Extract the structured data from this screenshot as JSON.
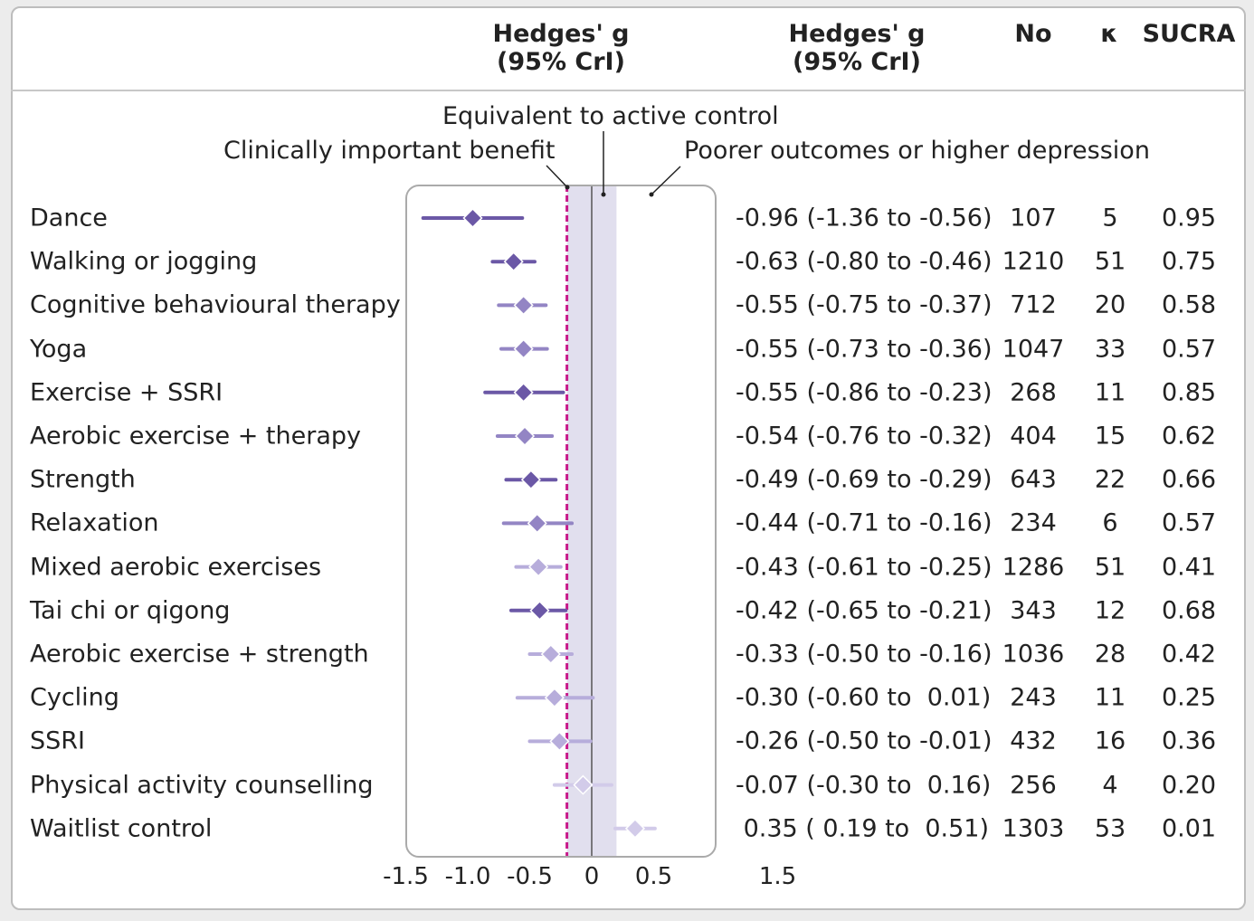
{
  "headers": {
    "effect_plot": [
      "Hedges' g",
      "(95% CrI)"
    ],
    "effect_text": [
      "Hedges' g",
      "(95% CrI)"
    ],
    "n": "No",
    "k": "κ",
    "sucra": "SUCRA"
  },
  "annotations": {
    "equivalent": "Equivalent to active control",
    "benefit": "Clinically important benefit",
    "poorer": "Poorer outcomes or higher depression"
  },
  "rows": [
    {
      "label": "Dance",
      "ci_text": "-0.96 (-1.36 to -0.56)",
      "n": "107",
      "k": "5",
      "sucra": "0.95"
    },
    {
      "label": "Walking or jogging",
      "ci_text": "-0.63 (-0.80 to -0.46)",
      "n": "1210",
      "k": "51",
      "sucra": "0.75"
    },
    {
      "label": "Cognitive behavioural therapy",
      "ci_text": "-0.55 (-0.75 to -0.37)",
      "n": "712",
      "k": "20",
      "sucra": "0.58"
    },
    {
      "label": "Yoga",
      "ci_text": "-0.55 (-0.73 to -0.36)",
      "n": "1047",
      "k": "33",
      "sucra": "0.57"
    },
    {
      "label": "Exercise + SSRI",
      "ci_text": "-0.55 (-0.86 to -0.23)",
      "n": "268",
      "k": "11",
      "sucra": "0.85"
    },
    {
      "label": "Aerobic exercise + therapy",
      "ci_text": "-0.54 (-0.76 to -0.32)",
      "n": "404",
      "k": "15",
      "sucra": "0.62"
    },
    {
      "label": "Strength",
      "ci_text": "-0.49 (-0.69 to -0.29)",
      "n": "643",
      "k": "22",
      "sucra": "0.66"
    },
    {
      "label": "Relaxation",
      "ci_text": "-0.44 (-0.71 to -0.16)",
      "n": "234",
      "k": "6",
      "sucra": "0.57"
    },
    {
      "label": "Mixed aerobic exercises",
      "ci_text": "-0.43 (-0.61 to -0.25)",
      "n": "1286",
      "k": "51",
      "sucra": "0.41"
    },
    {
      "label": "Tai chi or qigong",
      "ci_text": "-0.42 (-0.65 to -0.21)",
      "n": "343",
      "k": "12",
      "sucra": "0.68"
    },
    {
      "label": "Aerobic exercise + strength",
      "ci_text": "-0.33 (-0.50 to -0.16)",
      "n": "1036",
      "k": "28",
      "sucra": "0.42"
    },
    {
      "label": "Cycling",
      "ci_text": "-0.30 (-0.60 to  0.01)",
      "n": "243",
      "k": "11",
      "sucra": "0.25"
    },
    {
      "label": "SSRI",
      "ci_text": "-0.26 (-0.50 to -0.01)",
      "n": "432",
      "k": "16",
      "sucra": "0.36"
    },
    {
      "label": "Physical activity counselling",
      "ci_text": "-0.07 (-0.30 to  0.16)",
      "n": "256",
      "k": "4",
      "sucra": "0.20"
    },
    {
      "label": "Waitlist control",
      "ci_text": " 0.35 ( 0.19 to  0.51)",
      "n": "1303",
      "k": "53",
      "sucra": "0.01"
    }
  ],
  "chart_data": {
    "type": "forest",
    "xlim": [
      -1.5,
      1.5
    ],
    "x_ticks": [
      "-1.5",
      "-1.0",
      "-0.5",
      "0",
      "0.5",
      "1.5"
    ],
    "x_tick_values": [
      -1.5,
      -1.0,
      -0.5,
      0,
      0.5,
      1.5
    ],
    "reference_line": 0,
    "clinically_important_benefit": -0.2,
    "equivalence_band": [
      -0.2,
      0.2
    ],
    "colors": {
      "dark": "#6b58a6",
      "medium": "#9385c4",
      "light": "#b7addb",
      "lightest": "#d2cbe9",
      "band": "#e1dfee",
      "benefit_line": "#c8198a"
    },
    "series": [
      {
        "name": "Dance",
        "estimate": -0.96,
        "lower": -1.36,
        "upper": -0.56,
        "shade": "dark"
      },
      {
        "name": "Walking or jogging",
        "estimate": -0.63,
        "lower": -0.8,
        "upper": -0.46,
        "shade": "dark"
      },
      {
        "name": "Cognitive behavioural therapy",
        "estimate": -0.55,
        "lower": -0.75,
        "upper": -0.37,
        "shade": "medium"
      },
      {
        "name": "Yoga",
        "estimate": -0.55,
        "lower": -0.73,
        "upper": -0.36,
        "shade": "medium"
      },
      {
        "name": "Exercise + SSRI",
        "estimate": -0.55,
        "lower": -0.86,
        "upper": -0.23,
        "shade": "dark"
      },
      {
        "name": "Aerobic exercise + therapy",
        "estimate": -0.54,
        "lower": -0.76,
        "upper": -0.32,
        "shade": "medium"
      },
      {
        "name": "Strength",
        "estimate": -0.49,
        "lower": -0.69,
        "upper": -0.29,
        "shade": "dark"
      },
      {
        "name": "Relaxation",
        "estimate": -0.44,
        "lower": -0.71,
        "upper": -0.16,
        "shade": "medium"
      },
      {
        "name": "Mixed aerobic exercises",
        "estimate": -0.43,
        "lower": -0.61,
        "upper": -0.25,
        "shade": "light"
      },
      {
        "name": "Tai chi or qigong",
        "estimate": -0.42,
        "lower": -0.65,
        "upper": -0.21,
        "shade": "dark"
      },
      {
        "name": "Aerobic exercise + strength",
        "estimate": -0.33,
        "lower": -0.5,
        "upper": -0.16,
        "shade": "light"
      },
      {
        "name": "Cycling",
        "estimate": -0.3,
        "lower": -0.6,
        "upper": 0.01,
        "shade": "light"
      },
      {
        "name": "SSRI",
        "estimate": -0.26,
        "lower": -0.5,
        "upper": -0.01,
        "shade": "light"
      },
      {
        "name": "Physical activity counselling",
        "estimate": -0.07,
        "lower": -0.3,
        "upper": 0.16,
        "shade": "lightest"
      },
      {
        "name": "Waitlist control",
        "estimate": 0.35,
        "lower": 0.19,
        "upper": 0.51,
        "shade": "lightest"
      }
    ]
  }
}
